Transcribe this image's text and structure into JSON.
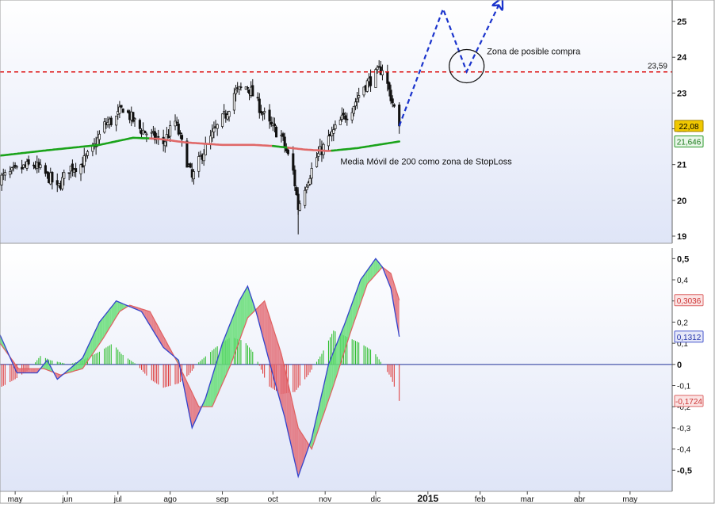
{
  "chart_data": [
    {
      "type": "candlestick",
      "panel": "price",
      "yticks": [
        19,
        20,
        21,
        22,
        23,
        24,
        25
      ],
      "ylim": [
        18.8,
        25.6
      ],
      "grid": false,
      "series": [
        {
          "name": "",
          "kind": "candles",
          "x": [],
          "note": "daily OHLC candles generated from close path",
          "close_path": [
            [
              "2014-04-22",
              20.6
            ],
            [
              "2014-05-05",
              20.9
            ],
            [
              "2014-05-12",
              21.0
            ],
            [
              "2014-05-22",
              20.6
            ],
            [
              "2014-05-26",
              20.3
            ],
            [
              "2014-06-02",
              20.9
            ],
            [
              "2014-06-09",
              21.0
            ],
            [
              "2014-06-16",
              21.4
            ],
            [
              "2014-06-23",
              22.1
            ],
            [
              "2014-06-30",
              22.3
            ],
            [
              "2014-07-04",
              22.6
            ],
            [
              "2014-07-14",
              22.0
            ],
            [
              "2014-07-21",
              21.8
            ],
            [
              "2014-07-28",
              21.6
            ],
            [
              "2014-08-04",
              22.2
            ],
            [
              "2014-08-11",
              21.1
            ],
            [
              "2014-08-14",
              20.6
            ],
            [
              "2014-08-20",
              21.3
            ],
            [
              "2014-08-27",
              21.9
            ],
            [
              "2014-09-03",
              22.4
            ],
            [
              "2014-09-08",
              23.0
            ],
            [
              "2014-09-16",
              23.2
            ],
            [
              "2014-09-22",
              22.7
            ],
            [
              "2014-09-29",
              22.1
            ],
            [
              "2014-10-06",
              21.8
            ],
            [
              "2014-10-13",
              20.8
            ],
            [
              "2014-10-16",
              19.8
            ],
            [
              "2014-10-20",
              20.4
            ],
            [
              "2014-10-27",
              21.2
            ],
            [
              "2014-11-03",
              21.7
            ],
            [
              "2014-11-10",
              22.2
            ],
            [
              "2014-11-17",
              22.6
            ],
            [
              "2014-11-24",
              23.2
            ],
            [
              "2014-12-01",
              23.5
            ],
            [
              "2014-12-05",
              23.7
            ],
            [
              "2014-12-10",
              22.9
            ],
            [
              "2014-12-15",
              22.08
            ]
          ]
        },
        {
          "name": "",
          "kind": "sma200",
          "color_up": "#1aa31a",
          "color_down": "#e06868",
          "points": [
            [
              "2014-04-22",
              21.25
            ],
            [
              "2014-05-20",
              21.4
            ],
            [
              "2014-06-20",
              21.55
            ],
            [
              "2014-07-10",
              21.75
            ],
            [
              "2014-07-25",
              21.72
            ],
            [
              "2014-08-10",
              21.62
            ],
            [
              "2014-09-01",
              21.55
            ],
            [
              "2014-09-20",
              21.55
            ],
            [
              "2014-10-01",
              21.52
            ],
            [
              "2014-10-20",
              21.42
            ],
            [
              "2014-11-03",
              21.38
            ],
            [
              "2014-11-20",
              21.46
            ],
            [
              "2014-12-15",
              21.646
            ]
          ],
          "segments": [
            [
              "2014-04-22",
              "2014-07-20",
              "up"
            ],
            [
              "2014-07-20",
              "2014-10-01",
              "down"
            ],
            [
              "2014-10-01",
              "2014-10-10",
              "up"
            ],
            [
              "2014-10-10",
              "2014-11-05",
              "down"
            ],
            [
              "2014-11-05",
              "2014-12-15",
              "up"
            ]
          ]
        },
        {
          "name": "",
          "kind": "projection",
          "style": "dashed",
          "color": "#1a33cc",
          "points": [
            [
              "2014-12-15",
              22.08
            ],
            [
              "2015-01-10",
              25.35
            ],
            [
              "2015-01-24",
              23.6
            ],
            [
              "2015-02-13",
              25.55
            ]
          ]
        }
      ],
      "hlines": [
        {
          "y": 23.59,
          "label": "23,59",
          "color": "#dd1111",
          "style": "dashed"
        }
      ],
      "price_tags": [
        {
          "label": "22,08",
          "y": 22.08,
          "bg": "#f0c800",
          "border": "#a08000",
          "color": "#000000"
        },
        {
          "label": "21,646",
          "y": 21.646,
          "bg": "#e8f6e8",
          "border": "#2a9a2a",
          "color": "#1a7a1a"
        }
      ],
      "annotations": [
        {
          "text": "Zona de posible compra",
          "x": "2015-02-05",
          "y": 24.08
        },
        {
          "text": "Media Móvil de 200 como zona de StopLoss",
          "x": "2014-11-10",
          "y": 21.0
        }
      ],
      "circle": {
        "x": "2015-01-24",
        "y": 23.75
      }
    },
    {
      "type": "area",
      "panel": "oscillator",
      "yticks": [
        -0.5,
        -0.4,
        -0.3,
        -0.2,
        -0.1,
        0,
        0.1,
        0.2,
        0.3,
        0.4,
        0.5
      ],
      "yticklabels": [
        "-0,5",
        "-0,4",
        "-0,3",
        "-0,2",
        "-0,1",
        "0",
        "0,1",
        "0,2",
        "0,3",
        "0,4",
        "0,5"
      ],
      "ylim": [
        -0.6,
        0.55
      ],
      "grid": false,
      "zero_line": true,
      "series": [
        {
          "name": "",
          "kind": "macd_line",
          "color": "#3344cc",
          "points": [
            [
              "2014-04-22",
              0.14
            ],
            [
              "2014-05-02",
              -0.04
            ],
            [
              "2014-05-14",
              -0.04
            ],
            [
              "2014-05-20",
              0.02
            ],
            [
              "2014-05-26",
              -0.07
            ],
            [
              "2014-06-10",
              0.03
            ],
            [
              "2014-06-20",
              0.2
            ],
            [
              "2014-06-30",
              0.3
            ],
            [
              "2014-07-06",
              0.28
            ],
            [
              "2014-07-15",
              0.25
            ],
            [
              "2014-07-28",
              0.08
            ],
            [
              "2014-08-06",
              0.02
            ],
            [
              "2014-08-14",
              -0.3
            ],
            [
              "2014-08-22",
              -0.16
            ],
            [
              "2014-09-01",
              0.1
            ],
            [
              "2014-09-11",
              0.3
            ],
            [
              "2014-09-16",
              0.37
            ],
            [
              "2014-09-21",
              0.25
            ],
            [
              "2014-10-01",
              -0.05
            ],
            [
              "2014-10-08",
              -0.25
            ],
            [
              "2014-10-16",
              -0.53
            ],
            [
              "2014-10-24",
              -0.35
            ],
            [
              "2014-11-03",
              0.0
            ],
            [
              "2014-11-13",
              0.2
            ],
            [
              "2014-11-22",
              0.4
            ],
            [
              "2014-12-01",
              0.5
            ],
            [
              "2014-12-05",
              0.46
            ],
            [
              "2014-12-10",
              0.36
            ],
            [
              "2014-12-15",
              0.1312
            ]
          ]
        },
        {
          "name": "",
          "kind": "signal_line",
          "color": "#e06060",
          "points": [
            [
              "2014-04-22",
              0.1
            ],
            [
              "2014-05-03",
              -0.02
            ],
            [
              "2014-05-18",
              -0.02
            ],
            [
              "2014-05-28",
              -0.05
            ],
            [
              "2014-06-10",
              -0.02
            ],
            [
              "2014-06-22",
              0.12
            ],
            [
              "2014-07-02",
              0.25
            ],
            [
              "2014-07-08",
              0.28
            ],
            [
              "2014-07-20",
              0.25
            ],
            [
              "2014-08-06",
              0.0
            ],
            [
              "2014-08-18",
              -0.2
            ],
            [
              "2014-08-26",
              -0.2
            ],
            [
              "2014-09-06",
              0.0
            ],
            [
              "2014-09-16",
              0.22
            ],
            [
              "2014-09-26",
              0.3
            ],
            [
              "2014-10-06",
              0.05
            ],
            [
              "2014-10-16",
              -0.3
            ],
            [
              "2014-10-24",
              -0.4
            ],
            [
              "2014-11-06",
              -0.1
            ],
            [
              "2014-11-16",
              0.15
            ],
            [
              "2014-11-26",
              0.38
            ],
            [
              "2014-12-05",
              0.46
            ],
            [
              "2014-12-10",
              0.43
            ],
            [
              "2014-12-15",
              0.3036
            ]
          ]
        },
        {
          "name": "",
          "kind": "histogram",
          "color_pos": "#22bb22",
          "color_neg": "#dd3333",
          "points": [
            [
              "2014-04-22",
              -0.11
            ],
            [
              "2014-05-01",
              -0.07
            ],
            [
              "2014-05-10",
              -0.02
            ],
            [
              "2014-05-16",
              0.04
            ],
            [
              "2014-05-22",
              0.02
            ],
            [
              "2014-06-02",
              0.0
            ],
            [
              "2014-06-10",
              0.02
            ],
            [
              "2014-06-20",
              0.06
            ],
            [
              "2014-06-28",
              0.1
            ],
            [
              "2014-07-03",
              0.05
            ],
            [
              "2014-07-12",
              0.0
            ],
            [
              "2014-07-20",
              -0.07
            ],
            [
              "2014-07-28",
              -0.11
            ],
            [
              "2014-08-06",
              -0.09
            ],
            [
              "2014-08-12",
              -0.05
            ],
            [
              "2014-08-18",
              0.01
            ],
            [
              "2014-08-28",
              0.08
            ],
            [
              "2014-09-06",
              0.13
            ],
            [
              "2014-09-14",
              0.11
            ],
            [
              "2014-09-20",
              0.05
            ],
            [
              "2014-09-28",
              -0.1
            ],
            [
              "2014-10-06",
              -0.14
            ],
            [
              "2014-10-14",
              -0.13
            ],
            [
              "2014-10-22",
              -0.05
            ],
            [
              "2014-10-30",
              0.05
            ],
            [
              "2014-11-06",
              0.16
            ],
            [
              "2014-11-14",
              0.13
            ],
            [
              "2014-11-22",
              0.1
            ],
            [
              "2014-11-30",
              0.06
            ],
            [
              "2014-12-05",
              0.0
            ],
            [
              "2014-12-10",
              -0.06
            ],
            [
              "2014-12-15",
              -0.1724
            ]
          ]
        }
      ],
      "value_tags": [
        {
          "label": "0,3036",
          "y": 0.3036,
          "bg": "#fbe4e4",
          "border": "#dd6666",
          "color": "#cc3333"
        },
        {
          "label": "0,1312",
          "y": 0.1312,
          "bg": "#e6e8f8",
          "border": "#4455cc",
          "color": "#2233aa"
        },
        {
          "label": "-0,1724",
          "y": -0.1724,
          "bg": "#fbe4e4",
          "border": "#dd6666",
          "color": "#cc3333"
        }
      ]
    }
  ],
  "x_axis": {
    "ticks": [
      [
        "2014-05-01",
        "may"
      ],
      [
        "2014-06-01",
        "jun"
      ],
      [
        "2014-07-01",
        "jul"
      ],
      [
        "2014-08-01",
        "ago"
      ],
      [
        "2014-09-01",
        "sep"
      ],
      [
        "2014-10-01",
        "oct"
      ],
      [
        "2014-11-01",
        "nov"
      ],
      [
        "2014-12-01",
        "dic"
      ],
      [
        "2015-01-01",
        "2015"
      ],
      [
        "2015-02-01",
        "feb"
      ],
      [
        "2015-03-01",
        "mar"
      ],
      [
        "2015-04-01",
        "abr"
      ],
      [
        "2015-05-01",
        "may"
      ]
    ],
    "bold_labels": [
      "2015"
    ],
    "xlim": [
      "2014-04-22",
      "2015-05-26"
    ]
  }
}
